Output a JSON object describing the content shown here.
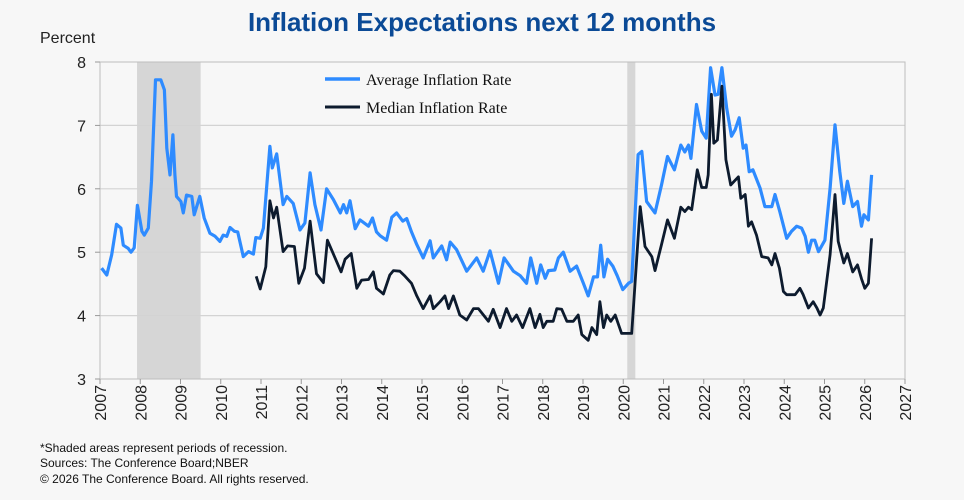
{
  "chart_data": {
    "type": "line",
    "title": "Inflation Expectations next 12 months",
    "ylabel": "Percent",
    "xlabel": "",
    "ylim": [
      3,
      8
    ],
    "xlim": [
      2007,
      2027
    ],
    "yticks": [
      "3",
      "4",
      "5",
      "6",
      "7",
      "8"
    ],
    "xticks": [
      "2007",
      "2008",
      "2009",
      "2010",
      "2011",
      "2012",
      "2013",
      "2014",
      "2015",
      "2016",
      "2017",
      "2018",
      "2019",
      "2020",
      "2021",
      "2022",
      "2023",
      "2024",
      "2025",
      "2026",
      "2027"
    ],
    "grid": "horizontal",
    "legend_position": "top-center",
    "recessions": [
      [
        2007.92,
        2009.5
      ],
      [
        2020.1,
        2020.3
      ]
    ],
    "series": [
      {
        "name": "Average Inflation Rate",
        "color": "#2e8bff",
        "points": [
          [
            2007.04,
            4.75
          ],
          [
            2007.17,
            4.64
          ],
          [
            2007.29,
            4.96
          ],
          [
            2007.41,
            5.44
          ],
          [
            2007.52,
            5.38
          ],
          [
            2007.58,
            5.11
          ],
          [
            2007.7,
            5.06
          ],
          [
            2007.77,
            5.0
          ],
          [
            2007.85,
            5.07
          ],
          [
            2007.93,
            5.74
          ],
          [
            2008.04,
            5.33
          ],
          [
            2008.1,
            5.27
          ],
          [
            2008.2,
            5.38
          ],
          [
            2008.28,
            6.12
          ],
          [
            2008.38,
            7.72
          ],
          [
            2008.51,
            7.72
          ],
          [
            2008.6,
            7.56
          ],
          [
            2008.66,
            6.64
          ],
          [
            2008.74,
            6.22
          ],
          [
            2008.81,
            6.85
          ],
          [
            2008.86,
            6.22
          ],
          [
            2008.9,
            5.88
          ],
          [
            2009.01,
            5.8
          ],
          [
            2009.07,
            5.62
          ],
          [
            2009.15,
            5.9
          ],
          [
            2009.28,
            5.88
          ],
          [
            2009.34,
            5.59
          ],
          [
            2009.48,
            5.88
          ],
          [
            2009.59,
            5.54
          ],
          [
            2009.73,
            5.3
          ],
          [
            2009.86,
            5.25
          ],
          [
            2009.98,
            5.17
          ],
          [
            2010.06,
            5.27
          ],
          [
            2010.15,
            5.25
          ],
          [
            2010.23,
            5.39
          ],
          [
            2010.34,
            5.33
          ],
          [
            2010.42,
            5.32
          ],
          [
            2010.56,
            4.93
          ],
          [
            2010.69,
            5.01
          ],
          [
            2010.81,
            4.97
          ],
          [
            2010.87,
            5.23
          ],
          [
            2010.98,
            5.22
          ],
          [
            2011.06,
            5.38
          ],
          [
            2011.22,
            6.67
          ],
          [
            2011.28,
            6.33
          ],
          [
            2011.39,
            6.55
          ],
          [
            2011.55,
            5.75
          ],
          [
            2011.64,
            5.88
          ],
          [
            2011.8,
            5.77
          ],
          [
            2011.97,
            5.35
          ],
          [
            2012.09,
            5.46
          ],
          [
            2012.22,
            6.25
          ],
          [
            2012.34,
            5.75
          ],
          [
            2012.49,
            5.35
          ],
          [
            2012.63,
            6.0
          ],
          [
            2012.8,
            5.83
          ],
          [
            2012.97,
            5.62
          ],
          [
            2013.05,
            5.75
          ],
          [
            2013.13,
            5.62
          ],
          [
            2013.21,
            5.81
          ],
          [
            2013.34,
            5.37
          ],
          [
            2013.46,
            5.51
          ],
          [
            2013.67,
            5.41
          ],
          [
            2013.77,
            5.54
          ],
          [
            2013.87,
            5.32
          ],
          [
            2013.96,
            5.26
          ],
          [
            2014.12,
            5.19
          ],
          [
            2014.25,
            5.55
          ],
          [
            2014.37,
            5.62
          ],
          [
            2014.52,
            5.49
          ],
          [
            2014.62,
            5.53
          ],
          [
            2014.74,
            5.32
          ],
          [
            2014.87,
            5.12
          ],
          [
            2015.03,
            4.91
          ],
          [
            2015.2,
            5.18
          ],
          [
            2015.28,
            4.91
          ],
          [
            2015.49,
            5.1
          ],
          [
            2015.61,
            4.88
          ],
          [
            2015.7,
            5.16
          ],
          [
            2015.86,
            5.04
          ],
          [
            2016.11,
            4.7
          ],
          [
            2016.36,
            4.91
          ],
          [
            2016.52,
            4.7
          ],
          [
            2016.69,
            5.02
          ],
          [
            2016.9,
            4.51
          ],
          [
            2017.04,
            4.91
          ],
          [
            2017.27,
            4.7
          ],
          [
            2017.44,
            4.63
          ],
          [
            2017.6,
            4.51
          ],
          [
            2017.7,
            4.91
          ],
          [
            2017.85,
            4.51
          ],
          [
            2017.95,
            4.8
          ],
          [
            2018.06,
            4.59
          ],
          [
            2018.14,
            4.71
          ],
          [
            2018.3,
            4.72
          ],
          [
            2018.39,
            4.91
          ],
          [
            2018.51,
            5.0
          ],
          [
            2018.68,
            4.7
          ],
          [
            2018.84,
            4.78
          ],
          [
            2019.01,
            4.51
          ],
          [
            2019.13,
            4.31
          ],
          [
            2019.26,
            4.61
          ],
          [
            2019.36,
            4.61
          ],
          [
            2019.44,
            5.11
          ],
          [
            2019.52,
            4.61
          ],
          [
            2019.61,
            4.89
          ],
          [
            2019.74,
            4.78
          ],
          [
            2019.85,
            4.63
          ],
          [
            2019.99,
            4.41
          ],
          [
            2020.13,
            4.51
          ],
          [
            2020.21,
            4.54
          ],
          [
            2020.37,
            6.54
          ],
          [
            2020.46,
            6.59
          ],
          [
            2020.58,
            5.8
          ],
          [
            2020.79,
            5.62
          ],
          [
            2020.95,
            6.06
          ],
          [
            2021.1,
            6.51
          ],
          [
            2021.27,
            6.3
          ],
          [
            2021.43,
            6.69
          ],
          [
            2021.53,
            6.58
          ],
          [
            2021.62,
            6.69
          ],
          [
            2021.68,
            6.48
          ],
          [
            2021.82,
            7.33
          ],
          [
            2021.95,
            6.91
          ],
          [
            2022.06,
            6.8
          ],
          [
            2022.17,
            7.91
          ],
          [
            2022.28,
            7.48
          ],
          [
            2022.36,
            7.49
          ],
          [
            2022.45,
            7.91
          ],
          [
            2022.57,
            7.27
          ],
          [
            2022.69,
            6.83
          ],
          [
            2022.78,
            6.93
          ],
          [
            2022.88,
            7.12
          ],
          [
            2022.98,
            6.64
          ],
          [
            2023.05,
            6.69
          ],
          [
            2023.13,
            6.27
          ],
          [
            2023.22,
            6.3
          ],
          [
            2023.4,
            6.01
          ],
          [
            2023.52,
            5.72
          ],
          [
            2023.69,
            5.72
          ],
          [
            2023.77,
            5.91
          ],
          [
            2023.89,
            5.64
          ],
          [
            2024.06,
            5.22
          ],
          [
            2024.18,
            5.33
          ],
          [
            2024.31,
            5.41
          ],
          [
            2024.43,
            5.38
          ],
          [
            2024.52,
            5.25
          ],
          [
            2024.6,
            5.0
          ],
          [
            2024.68,
            5.19
          ],
          [
            2024.76,
            5.19
          ],
          [
            2024.85,
            5.01
          ],
          [
            2025.01,
            5.19
          ],
          [
            2025.14,
            6.01
          ],
          [
            2025.26,
            7.01
          ],
          [
            2025.38,
            6.27
          ],
          [
            2025.48,
            5.77
          ],
          [
            2025.57,
            6.12
          ],
          [
            2025.7,
            5.72
          ],
          [
            2025.82,
            5.8
          ],
          [
            2025.92,
            5.41
          ],
          [
            2025.98,
            5.59
          ],
          [
            2026.09,
            5.51
          ],
          [
            2026.17,
            6.22
          ]
        ]
      },
      {
        "name": "Median Inflation Rate",
        "color": "#0d1b2e",
        "points": [
          [
            2010.88,
            4.62
          ],
          [
            2010.98,
            4.42
          ],
          [
            2011.12,
            4.77
          ],
          [
            2011.22,
            5.81
          ],
          [
            2011.31,
            5.54
          ],
          [
            2011.39,
            5.71
          ],
          [
            2011.55,
            5.01
          ],
          [
            2011.66,
            5.1
          ],
          [
            2011.83,
            5.09
          ],
          [
            2011.94,
            4.51
          ],
          [
            2012.08,
            4.75
          ],
          [
            2012.22,
            5.49
          ],
          [
            2012.38,
            4.66
          ],
          [
            2012.55,
            4.52
          ],
          [
            2012.65,
            5.19
          ],
          [
            2012.8,
            4.97
          ],
          [
            2012.99,
            4.69
          ],
          [
            2013.09,
            4.89
          ],
          [
            2013.24,
            4.98
          ],
          [
            2013.38,
            4.43
          ],
          [
            2013.5,
            4.56
          ],
          [
            2013.67,
            4.57
          ],
          [
            2013.79,
            4.69
          ],
          [
            2013.87,
            4.43
          ],
          [
            2014.04,
            4.34
          ],
          [
            2014.2,
            4.64
          ],
          [
            2014.29,
            4.71
          ],
          [
            2014.45,
            4.7
          ],
          [
            2014.58,
            4.62
          ],
          [
            2014.74,
            4.51
          ],
          [
            2014.87,
            4.31
          ],
          [
            2015.03,
            4.11
          ],
          [
            2015.2,
            4.31
          ],
          [
            2015.28,
            4.11
          ],
          [
            2015.45,
            4.22
          ],
          [
            2015.57,
            4.31
          ],
          [
            2015.66,
            4.11
          ],
          [
            2015.78,
            4.31
          ],
          [
            2015.94,
            4.01
          ],
          [
            2016.11,
            3.93
          ],
          [
            2016.28,
            4.11
          ],
          [
            2016.4,
            4.11
          ],
          [
            2016.65,
            3.91
          ],
          [
            2016.77,
            4.1
          ],
          [
            2016.94,
            3.81
          ],
          [
            2017.1,
            4.11
          ],
          [
            2017.23,
            3.91
          ],
          [
            2017.35,
            4.01
          ],
          [
            2017.5,
            3.81
          ],
          [
            2017.68,
            4.11
          ],
          [
            2017.81,
            3.81
          ],
          [
            2017.93,
            4.02
          ],
          [
            2018.01,
            3.81
          ],
          [
            2018.1,
            3.91
          ],
          [
            2018.26,
            3.91
          ],
          [
            2018.35,
            4.11
          ],
          [
            2018.47,
            4.1
          ],
          [
            2018.6,
            3.91
          ],
          [
            2018.76,
            3.91
          ],
          [
            2018.88,
            4.01
          ],
          [
            2018.97,
            3.7
          ],
          [
            2019.13,
            3.61
          ],
          [
            2019.22,
            3.81
          ],
          [
            2019.34,
            3.7
          ],
          [
            2019.42,
            4.22
          ],
          [
            2019.51,
            3.81
          ],
          [
            2019.59,
            4.01
          ],
          [
            2019.69,
            3.91
          ],
          [
            2019.8,
            4.01
          ],
          [
            2019.96,
            3.72
          ],
          [
            2020.21,
            3.72
          ],
          [
            2020.42,
            5.72
          ],
          [
            2020.54,
            5.09
          ],
          [
            2020.71,
            4.93
          ],
          [
            2020.79,
            4.71
          ],
          [
            2020.95,
            5.12
          ],
          [
            2021.1,
            5.51
          ],
          [
            2021.27,
            5.22
          ],
          [
            2021.43,
            5.71
          ],
          [
            2021.53,
            5.64
          ],
          [
            2021.62,
            5.71
          ],
          [
            2021.7,
            5.67
          ],
          [
            2021.84,
            6.3
          ],
          [
            2021.95,
            6.02
          ],
          [
            2022.06,
            6.02
          ],
          [
            2022.11,
            6.22
          ],
          [
            2022.19,
            7.49
          ],
          [
            2022.25,
            6.72
          ],
          [
            2022.34,
            6.77
          ],
          [
            2022.45,
            7.62
          ],
          [
            2022.55,
            6.46
          ],
          [
            2022.67,
            6.06
          ],
          [
            2022.86,
            6.19
          ],
          [
            2022.92,
            5.85
          ],
          [
            2023.03,
            5.91
          ],
          [
            2023.11,
            5.41
          ],
          [
            2023.19,
            5.48
          ],
          [
            2023.31,
            5.27
          ],
          [
            2023.44,
            4.93
          ],
          [
            2023.6,
            4.91
          ],
          [
            2023.69,
            4.8
          ],
          [
            2023.77,
            4.98
          ],
          [
            2023.88,
            4.75
          ],
          [
            2023.98,
            4.38
          ],
          [
            2024.06,
            4.33
          ],
          [
            2024.27,
            4.33
          ],
          [
            2024.39,
            4.43
          ],
          [
            2024.47,
            4.33
          ],
          [
            2024.6,
            4.12
          ],
          [
            2024.72,
            4.22
          ],
          [
            2024.81,
            4.12
          ],
          [
            2024.89,
            4.01
          ],
          [
            2024.97,
            4.12
          ],
          [
            2025.14,
            4.96
          ],
          [
            2025.26,
            5.91
          ],
          [
            2025.34,
            5.17
          ],
          [
            2025.48,
            4.83
          ],
          [
            2025.57,
            4.98
          ],
          [
            2025.7,
            4.69
          ],
          [
            2025.82,
            4.8
          ],
          [
            2025.92,
            4.58
          ],
          [
            2026.0,
            4.43
          ],
          [
            2026.09,
            4.51
          ],
          [
            2026.17,
            5.22
          ]
        ]
      }
    ]
  },
  "footnotes": [
    "*Shaded areas represent periods of recession.",
    "Sources: The Conference Board;NBER",
    "© 2026 The Conference Board. All rights reserved."
  ]
}
